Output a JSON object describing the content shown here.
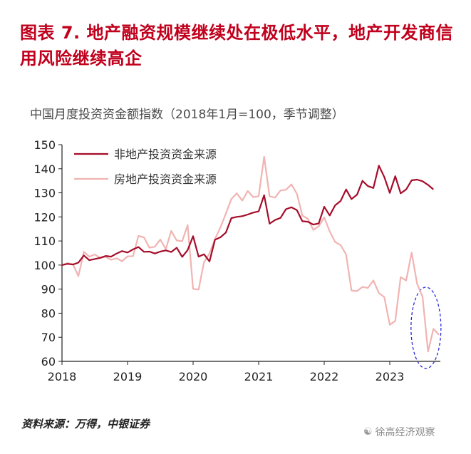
{
  "header": {
    "title": "图表 7. 地产融资规模继续处在极低水平，地产开发商信用风险继续高企"
  },
  "footer": {
    "source": "资料来源：万得，中银证券",
    "watermark": "徐高经济观察",
    "watermark_icon": "wechat-icon"
  },
  "colors": {
    "title": "#c0001c",
    "series_nonre": "#a50d2a",
    "series_re": "#f0b4b2",
    "highlight_ellipse": "#2a2ad8"
  },
  "chart_data": {
    "type": "line",
    "subtitle": "中国月度投资资金额指数（2018年1月=100，季节调整）",
    "ylim": [
      60,
      150
    ],
    "yticks": [
      60,
      70,
      80,
      90,
      100,
      110,
      120,
      130,
      140,
      150
    ],
    "xticks": [
      "2018",
      "2019",
      "2020",
      "2021",
      "2022",
      "2023"
    ],
    "x_start": "2018-01",
    "grid": false,
    "legend_position": "top-left",
    "annotation": "dashed ellipse around 2023 H2 values of 房地产投资资金来源",
    "series": [
      {
        "name": "非地产投资资金来源",
        "values": [
          100,
          100.5,
          100.2,
          101,
          104,
          102,
          102.5,
          103,
          103.8,
          103.5,
          104.8,
          105.8,
          105.2,
          106.5,
          107.5,
          105.5,
          105.6,
          104.8,
          105.6,
          106.1,
          105.4,
          107.2,
          103.4,
          106.2,
          112,
          103.5,
          104.5,
          101.5,
          110.5,
          111.5,
          113.5,
          119.5,
          120,
          120.3,
          121,
          121.8,
          122.3,
          129,
          117.2,
          118.7,
          119.6,
          123.2,
          124,
          122.8,
          118.2,
          118,
          116.8,
          117.3,
          124.2,
          120.6,
          124.8,
          126.6,
          131.4,
          127.4,
          129.2,
          135,
          132.8,
          132,
          141.3,
          136.6,
          130,
          136.9,
          129.8,
          131.4,
          135.2,
          135.5,
          134.8,
          133.3,
          131.4
        ]
      },
      {
        "name": "房地产投资资金来源",
        "values": [
          100,
          100.8,
          100.4,
          95.4,
          105.5,
          103.5,
          104.4,
          103,
          103.4,
          102.2,
          102.8,
          101.6,
          103.6,
          103.7,
          112.1,
          111.5,
          107.2,
          107.6,
          110.6,
          106.6,
          114.2,
          110.2,
          109.9,
          116.6,
          90.1,
          89.8,
          101.2,
          104.8,
          110.8,
          115.6,
          121.4,
          127.4,
          129.8,
          126.8,
          130.8,
          128.2,
          128.6,
          145,
          128.6,
          128,
          131,
          131.3,
          133.5,
          129.6,
          120.6,
          119.2,
          114.6,
          116.1,
          119.8,
          114,
          109.6,
          108.3,
          104.4,
          89.4,
          89.2,
          90.9,
          90.5,
          93.6,
          88.4,
          86.7,
          75.2,
          76.8,
          95,
          93.6,
          105.2,
          92.3,
          86.8,
          64.1,
          73.5,
          71
        ]
      }
    ]
  }
}
